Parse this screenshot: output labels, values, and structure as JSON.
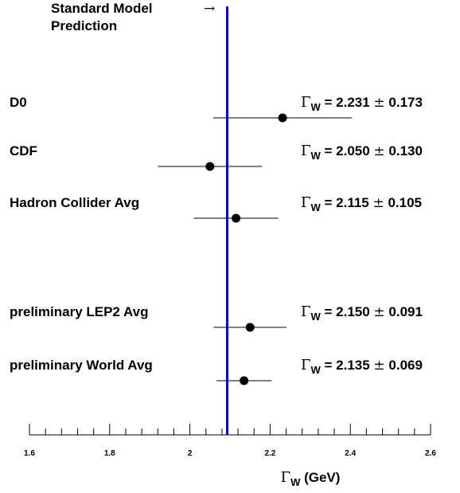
{
  "chart_data": {
    "type": "scatter",
    "title": "",
    "xlabel": {
      "symbol": "Γ",
      "subscript": "W",
      "rest": " (GeV)"
    },
    "ylabel": "",
    "xlim": [
      1.6,
      2.6
    ],
    "xticks": [
      1.6,
      1.8,
      2.0,
      2.2,
      2.4,
      2.6
    ],
    "xtick_labels": [
      "1.6",
      "1.8",
      "2",
      "2.2",
      "2.4",
      "2.6"
    ],
    "grid": false,
    "reference_line": {
      "value": 2.093,
      "label_line1": "Standard Model",
      "label_line2": "Prediction",
      "arrow": "→",
      "color": "#0000cc"
    },
    "measurements": [
      {
        "name": "D0",
        "value": 2.231,
        "error": 0.173,
        "value_text": "2.231",
        "error_text": "0.173"
      },
      {
        "name": "CDF",
        "value": 2.05,
        "error": 0.13,
        "value_text": "2.050",
        "error_text": "0.130"
      },
      {
        "name": "Hadron Collider Avg",
        "value": 2.115,
        "error": 0.105,
        "value_text": "2.115",
        "error_text": "0.105"
      },
      {
        "name": "preliminary LEP2 Avg",
        "value": 2.15,
        "error": 0.091,
        "value_text": "2.150",
        "error_text": "0.091"
      },
      {
        "name": "preliminary World Avg",
        "value": 2.135,
        "error": 0.069,
        "value_text": "2.135",
        "error_text": "0.069"
      }
    ],
    "annotation_parts": {
      "symbol": "Γ",
      "subscript": "W",
      "equals": " = ",
      "pm": "±"
    }
  }
}
